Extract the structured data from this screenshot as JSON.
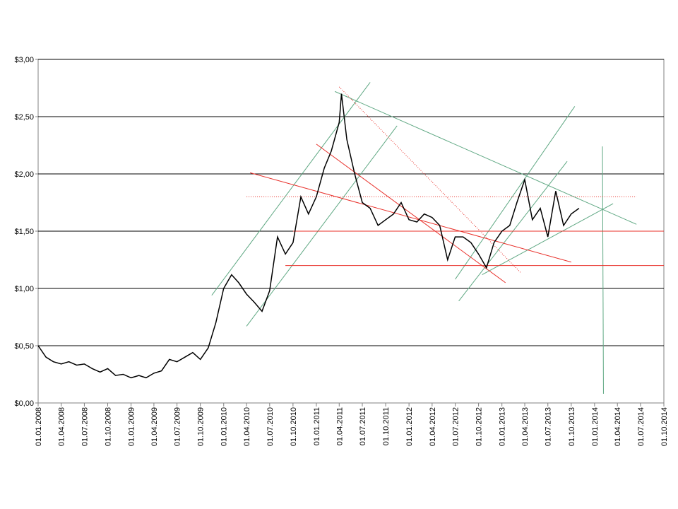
{
  "chart_data": {
    "type": "line",
    "xlim": [
      "01.01.2008",
      "01.10.2014"
    ],
    "xticks": [
      "01.01.2008",
      "01.04.2008",
      "01.07.2008",
      "01.10.2008",
      "01.01.2009",
      "01.04.2009",
      "01.07.2009",
      "01.10.2009",
      "01.01.2010",
      "01.04.2010",
      "01.07.2010",
      "01.10.2010",
      "01.01.2011",
      "01.04.2011",
      "01.07.2011",
      "01.10.2011",
      "01.01.2012",
      "01.04.2012",
      "01.07.2012",
      "01.10.2012",
      "01.01.2013",
      "01.04.2013",
      "01.07.2013",
      "01.10.2013",
      "01.01.2014",
      "01.04.2014",
      "01.07.2014",
      "01.10.2014"
    ],
    "ylim": [
      0,
      3
    ],
    "yticks": [
      {
        "value": 0,
        "label": "$0,00"
      },
      {
        "value": 0.5,
        "label": "$0,50"
      },
      {
        "value": 1,
        "label": "$1,00"
      },
      {
        "value": 1.5,
        "label": "$1,50"
      },
      {
        "value": 2,
        "label": "$2,00"
      },
      {
        "value": 2.5,
        "label": "$2,50"
      },
      {
        "value": 3,
        "label": "$3,00"
      }
    ],
    "grid": true,
    "x": [
      "01.01.2008",
      "01.02.2008",
      "01.03.2008",
      "01.04.2008",
      "01.05.2008",
      "01.06.2008",
      "01.07.2008",
      "01.08.2008",
      "01.09.2008",
      "01.10.2008",
      "01.11.2008",
      "01.12.2008",
      "01.01.2009",
      "01.02.2009",
      "01.03.2009",
      "01.04.2009",
      "01.05.2009",
      "01.06.2009",
      "01.07.2009",
      "01.08.2009",
      "01.09.2009",
      "01.10.2009",
      "01.11.2009",
      "01.12.2009",
      "01.01.2010",
      "01.02.2010",
      "01.03.2010",
      "01.04.2010",
      "01.05.2010",
      "01.06.2010",
      "01.07.2010",
      "01.08.2010",
      "01.09.2010",
      "01.10.2010",
      "01.11.2010",
      "01.12.2010",
      "01.01.2011",
      "01.02.2011",
      "01.03.2011",
      "01.04.2011",
      "10.04.2011",
      "01.05.2011",
      "01.06.2011",
      "01.07.2011",
      "01.08.2011",
      "01.09.2011",
      "01.10.2011",
      "01.11.2011",
      "01.12.2011",
      "01.01.2012",
      "01.02.2012",
      "01.03.2012",
      "01.04.2012",
      "01.05.2012",
      "01.06.2012",
      "01.07.2012",
      "01.08.2012",
      "01.09.2012",
      "01.10.2012",
      "01.11.2012",
      "01.12.2012",
      "01.01.2013",
      "01.02.2013",
      "01.03.2013",
      "01.04.2013",
      "01.05.2013",
      "01.06.2013",
      "01.07.2013",
      "01.08.2013",
      "01.09.2013",
      "01.10.2013",
      "01.11.2013"
    ],
    "series": [
      {
        "color": "#000000",
        "values": [
          0.5,
          0.4,
          0.36,
          0.34,
          0.36,
          0.33,
          0.34,
          0.3,
          0.27,
          0.3,
          0.24,
          0.25,
          0.22,
          0.24,
          0.22,
          0.26,
          0.28,
          0.38,
          0.36,
          0.4,
          0.44,
          0.38,
          0.48,
          0.7,
          1.0,
          1.12,
          1.05,
          0.95,
          0.88,
          0.8,
          0.98,
          1.45,
          1.3,
          1.4,
          1.8,
          1.65,
          1.8,
          2.05,
          2.2,
          2.45,
          2.7,
          2.3,
          2.0,
          1.75,
          1.7,
          1.55,
          1.6,
          1.65,
          1.75,
          1.6,
          1.58,
          1.65,
          1.62,
          1.55,
          1.25,
          1.45,
          1.45,
          1.4,
          1.3,
          1.18,
          1.4,
          1.5,
          1.55,
          1.75,
          1.95,
          1.6,
          1.7,
          1.45,
          1.85,
          1.55,
          1.65,
          1.7
        ]
      }
    ],
    "trendlines": [
      {
        "color": "#5fa883",
        "style": "solid",
        "x": [
          "15.11.2009",
          "01.08.2011"
        ],
        "y": [
          0.94,
          2.8
        ]
      },
      {
        "color": "#5fa883",
        "style": "solid",
        "x": [
          "01.04.2010",
          "15.11.2011"
        ],
        "y": [
          0.67,
          2.42
        ]
      },
      {
        "color": "#5fa883",
        "style": "solid",
        "x": [
          "15.03.2011",
          "15.06.2014"
        ],
        "y": [
          2.72,
          1.56
        ]
      },
      {
        "color": "#5fa883",
        "style": "solid",
        "x": [
          "01.07.2012",
          "15.10.2013"
        ],
        "y": [
          1.08,
          2.59
        ]
      },
      {
        "color": "#5fa883",
        "style": "solid",
        "x": [
          "15.07.2012",
          "15.09.2013"
        ],
        "y": [
          0.89,
          2.11
        ]
      },
      {
        "color": "#5fa883",
        "style": "solid",
        "x": [
          "15.10.2012",
          "15.03.2014"
        ],
        "y": [
          1.12,
          1.74
        ]
      },
      {
        "color": "#5fa883",
        "style": "solid",
        "x": [
          "01.02.2014",
          "05.02.2014"
        ],
        "y": [
          2.24,
          0.08
        ]
      },
      {
        "color": "#e8302a",
        "style": "solid",
        "x": [
          "15.04.2010",
          "01.10.2013"
        ],
        "y": [
          2.01,
          1.23
        ]
      },
      {
        "color": "#e8302a",
        "style": "solid",
        "x": [
          "01.01.2011",
          "15.01.2013"
        ],
        "y": [
          2.26,
          1.05
        ]
      },
      {
        "color": "#e8302a",
        "style": "solid",
        "x": [
          "01.09.2010",
          "01.10.2014"
        ],
        "y": [
          1.2,
          1.2
        ]
      },
      {
        "color": "#e8302a",
        "style": "solid",
        "x": [
          "01.10.2010",
          "01.10.2014"
        ],
        "y": [
          1.5,
          1.5
        ]
      },
      {
        "color": "#e8302a",
        "style": "dotted",
        "x": [
          "01.04.2010",
          "15.06.2014"
        ],
        "y": [
          1.8,
          1.8
        ]
      },
      {
        "color": "#e8302a",
        "style": "dotted",
        "x": [
          "01.04.2011",
          "15.03.2013"
        ],
        "y": [
          2.76,
          1.14
        ]
      }
    ]
  }
}
